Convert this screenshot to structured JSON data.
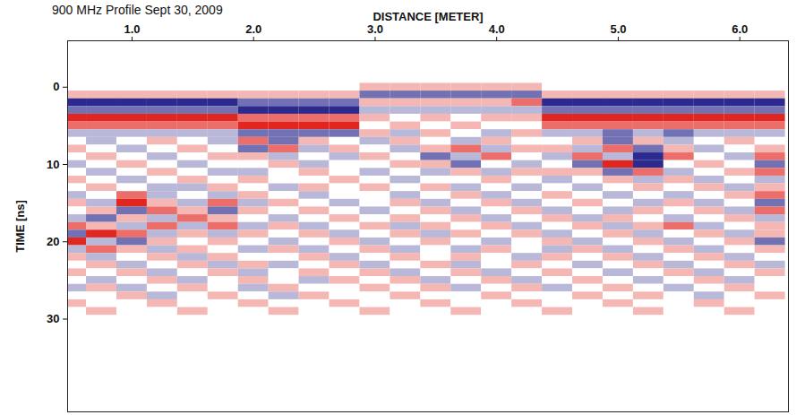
{
  "chart_data": {
    "type": "heatmap",
    "title": "900 MHz Profile Sept 30, 2009",
    "x_label": "DISTANCE [METER]",
    "y_label": "TIME [ns]",
    "xlim": [
      0.47,
      6.4
    ],
    "xticks": [
      1,
      2,
      3,
      4,
      5,
      6
    ],
    "ylim": [
      -6,
      42
    ],
    "yticks": [
      0,
      10,
      20,
      30
    ],
    "zlim": [
      -3,
      3
    ],
    "x": [
      0.5,
      0.75,
      1.0,
      1.25,
      1.5,
      1.75,
      2.0,
      2.25,
      2.5,
      2.75,
      3.0,
      3.25,
      3.5,
      3.75,
      4.0,
      4.25,
      4.5,
      4.75,
      5.0,
      5.25,
      5.5,
      5.75,
      6.0,
      6.25
    ],
    "y": [
      -1,
      0,
      1,
      2,
      3,
      4,
      5,
      6,
      7,
      8,
      9,
      10,
      11,
      12,
      13,
      14,
      15,
      16,
      17,
      18,
      19,
      20,
      21,
      22,
      23,
      24,
      25,
      26,
      27,
      28,
      29
    ],
    "values": [
      [
        0,
        0,
        0,
        0,
        0,
        0,
        0,
        0,
        0,
        0,
        0,
        0,
        0,
        0,
        0,
        0,
        0,
        0,
        0,
        0,
        0,
        0,
        0,
        0
      ],
      [
        0,
        0,
        0,
        0,
        0,
        0,
        0,
        0,
        0,
        0,
        1,
        1,
        1,
        1,
        1,
        1,
        0,
        0,
        0,
        0,
        0,
        0,
        0,
        0
      ],
      [
        1,
        1,
        1,
        1,
        1,
        1,
        1,
        1,
        1,
        1,
        -2,
        -2,
        -2,
        -2,
        -2,
        -2,
        1,
        1,
        1,
        1,
        1,
        1,
        1,
        1
      ],
      [
        -3,
        -3,
        -3,
        -3,
        -3,
        -3,
        -2,
        -2,
        -2,
        -2,
        1,
        1,
        1,
        1,
        1,
        2,
        -3,
        -3,
        -3,
        -3,
        -3,
        -3,
        -3,
        -3
      ],
      [
        -2,
        -2,
        -2,
        -2,
        -2,
        -2,
        -3,
        -3,
        -3,
        -3,
        -1,
        -1,
        -1,
        -1,
        -1,
        -1,
        -2,
        -2,
        -2,
        -2,
        -2,
        -2,
        -2,
        -2
      ],
      [
        3,
        3,
        3,
        3,
        3,
        3,
        2,
        2,
        2,
        2,
        1,
        0,
        1,
        0,
        1,
        1,
        3,
        3,
        3,
        3,
        3,
        3,
        3,
        3
      ],
      [
        2,
        2,
        2,
        2,
        2,
        2,
        3,
        3,
        3,
        3,
        0,
        1,
        0,
        1,
        0,
        0,
        2,
        2,
        2,
        2,
        2,
        2,
        2,
        2
      ],
      [
        -1,
        -1,
        -1,
        -1,
        -1,
        -1,
        -2,
        -2,
        -2,
        -2,
        1,
        -1,
        1,
        0,
        -1,
        1,
        -1,
        -1,
        -2,
        -1,
        -2,
        -1,
        -1,
        -1
      ],
      [
        0,
        -1,
        0,
        1,
        0,
        -1,
        2,
        -2,
        1,
        0,
        -1,
        1,
        0,
        -1,
        1,
        0,
        0,
        1,
        -2,
        1,
        -1,
        0,
        1,
        0
      ],
      [
        1,
        0,
        -1,
        0,
        1,
        0,
        -2,
        2,
        -1,
        1,
        0,
        -1,
        1,
        2,
        -1,
        1,
        1,
        -1,
        2,
        -2,
        1,
        -1,
        0,
        1
      ],
      [
        0,
        1,
        0,
        -1,
        0,
        1,
        1,
        -1,
        0,
        -1,
        1,
        0,
        -2,
        -1,
        2,
        0,
        -1,
        2,
        -1,
        -3,
        2,
        0,
        -1,
        2
      ],
      [
        -1,
        0,
        1,
        0,
        -1,
        0,
        0,
        1,
        -1,
        0,
        0,
        1,
        1,
        -2,
        0,
        -1,
        0,
        -2,
        3,
        -3,
        0,
        1,
        0,
        -2
      ],
      [
        0,
        -1,
        0,
        1,
        0,
        -1,
        -1,
        0,
        1,
        0,
        -1,
        0,
        -1,
        1,
        -1,
        1,
        1,
        1,
        -2,
        2,
        -1,
        0,
        1,
        2
      ],
      [
        1,
        0,
        -1,
        0,
        1,
        0,
        1,
        0,
        0,
        1,
        0,
        -1,
        0,
        0,
        1,
        0,
        -1,
        0,
        1,
        -1,
        1,
        -1,
        0,
        -1
      ],
      [
        0,
        1,
        0,
        -1,
        -1,
        1,
        0,
        -1,
        1,
        0,
        1,
        0,
        1,
        -1,
        0,
        -1,
        0,
        -1,
        0,
        1,
        0,
        1,
        -1,
        1
      ],
      [
        -1,
        0,
        2,
        -1,
        0,
        -1,
        1,
        0,
        -1,
        0,
        0,
        -1,
        0,
        1,
        -1,
        0,
        1,
        0,
        -1,
        0,
        -1,
        0,
        1,
        2
      ],
      [
        1,
        -1,
        3,
        1,
        -1,
        2,
        -1,
        1,
        0,
        -1,
        0,
        1,
        -1,
        0,
        1,
        -1,
        0,
        1,
        0,
        -1,
        1,
        -1,
        0,
        -2
      ],
      [
        0,
        1,
        -2,
        2,
        1,
        -2,
        1,
        0,
        1,
        0,
        -1,
        0,
        1,
        -1,
        0,
        1,
        -1,
        0,
        -1,
        1,
        0,
        1,
        -1,
        2
      ],
      [
        -1,
        -2,
        1,
        -1,
        2,
        1,
        0,
        -1,
        0,
        1,
        0,
        1,
        0,
        1,
        -1,
        0,
        1,
        -1,
        1,
        0,
        -1,
        0,
        1,
        -1
      ],
      [
        2,
        1,
        -1,
        2,
        -1,
        2,
        -1,
        1,
        -1,
        0,
        1,
        -1,
        1,
        0,
        1,
        -1,
        0,
        1,
        -1,
        1,
        2,
        -1,
        0,
        1
      ],
      [
        -2,
        3,
        2,
        -1,
        1,
        -1,
        1,
        0,
        1,
        -1,
        0,
        1,
        -1,
        1,
        0,
        1,
        -1,
        0,
        1,
        -1,
        0,
        1,
        -1,
        1
      ],
      [
        3,
        -1,
        -2,
        1,
        0,
        1,
        0,
        -1,
        0,
        1,
        -1,
        0,
        1,
        0,
        -1,
        0,
        1,
        -1,
        0,
        1,
        -1,
        0,
        1,
        -2
      ],
      [
        -1,
        2,
        1,
        -1,
        1,
        0,
        -1,
        1,
        -1,
        0,
        1,
        -1,
        0,
        -1,
        1,
        0,
        -1,
        1,
        -1,
        0,
        1,
        -1,
        0,
        1
      ],
      [
        1,
        -1,
        0,
        1,
        -1,
        1,
        0,
        0,
        1,
        -1,
        0,
        1,
        0,
        1,
        0,
        -1,
        1,
        0,
        1,
        -1,
        0,
        1,
        -1,
        0
      ],
      [
        0,
        1,
        -1,
        0,
        1,
        -1,
        1,
        -1,
        0,
        1,
        -1,
        0,
        1,
        -1,
        0,
        1,
        0,
        -1,
        0,
        1,
        -1,
        0,
        1,
        -1
      ],
      [
        1,
        0,
        1,
        -1,
        0,
        1,
        -1,
        0,
        1,
        0,
        1,
        -1,
        0,
        1,
        -1,
        0,
        1,
        0,
        -1,
        0,
        1,
        -1,
        0,
        1
      ],
      [
        0,
        -1,
        0,
        1,
        -1,
        0,
        1,
        0,
        -1,
        1,
        0,
        1,
        -1,
        0,
        1,
        -1,
        0,
        1,
        0,
        -1,
        0,
        1,
        -1,
        0
      ],
      [
        -1,
        1,
        -1,
        0,
        1,
        0,
        -1,
        1,
        0,
        0,
        1,
        0,
        1,
        -1,
        0,
        1,
        -1,
        0,
        1,
        0,
        -1,
        0,
        1,
        0
      ],
      [
        0,
        0,
        1,
        -1,
        0,
        1,
        0,
        -1,
        1,
        0,
        0,
        1,
        0,
        0,
        1,
        0,
        0,
        1,
        0,
        1,
        0,
        -1,
        0,
        1
      ],
      [
        1,
        0,
        0,
        1,
        0,
        0,
        1,
        0,
        0,
        1,
        0,
        0,
        1,
        0,
        0,
        1,
        0,
        0,
        1,
        0,
        0,
        1,
        0,
        0
      ],
      [
        0,
        1,
        0,
        0,
        1,
        0,
        0,
        1,
        0,
        0,
        1,
        0,
        0,
        1,
        0,
        0,
        1,
        0,
        0,
        1,
        0,
        0,
        1,
        0
      ]
    ]
  }
}
